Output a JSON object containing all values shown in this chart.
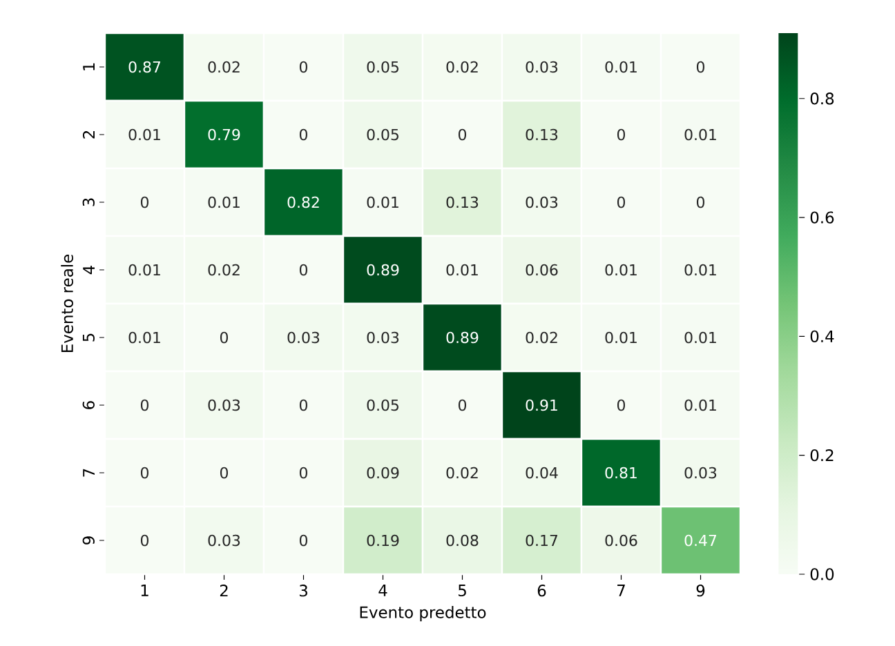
{
  "chart_data": {
    "type": "heatmap",
    "xlabel": "Evento predetto",
    "ylabel": "Evento reale",
    "categories": [
      "1",
      "2",
      "3",
      "4",
      "5",
      "6",
      "7",
      "9"
    ],
    "y_categories": [
      "1",
      "2",
      "3",
      "4",
      "5",
      "6",
      "7",
      "9"
    ],
    "cells": [
      [
        0.87,
        0.02,
        0,
        0.05,
        0.02,
        0.03,
        0.01,
        0
      ],
      [
        0.01,
        0.79,
        0,
        0.05,
        0,
        0.13,
        0,
        0.01
      ],
      [
        0,
        0.01,
        0.82,
        0.01,
        0.13,
        0.03,
        0,
        0
      ],
      [
        0.01,
        0.02,
        0,
        0.89,
        0.01,
        0.06,
        0.01,
        0.01
      ],
      [
        0.01,
        0,
        0.03,
        0.03,
        0.89,
        0.02,
        0.01,
        0.01
      ],
      [
        0,
        0.03,
        0,
        0.05,
        0,
        0.91,
        0,
        0.01
      ],
      [
        0,
        0,
        0,
        0.09,
        0.02,
        0.04,
        0.81,
        0.03
      ],
      [
        0,
        0.03,
        0,
        0.19,
        0.08,
        0.17,
        0.06,
        0.47
      ]
    ],
    "data_labels": true,
    "clim": [
      0,
      0.91
    ],
    "cticks": [
      {
        "value": 0,
        "label": "0.0"
      },
      0.2,
      0.4,
      0.6,
      0.8
    ]
  }
}
